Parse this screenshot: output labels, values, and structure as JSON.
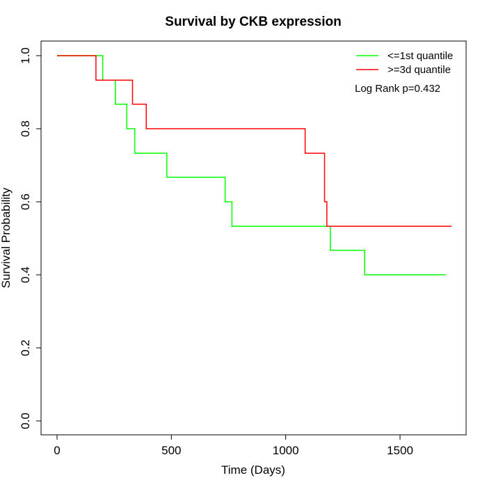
{
  "chart_data": {
    "type": "line",
    "subtype": "kaplan-meier step curve",
    "title": "Survival by CKB expression",
    "xlabel": "Time (Days)",
    "ylabel": "Survival Probability",
    "xlim": [
      0,
      1750
    ],
    "ylim": [
      0,
      1.0
    ],
    "x_ticks": [
      0,
      500,
      1000,
      1500
    ],
    "y_ticks": [
      "0.0",
      "0.2",
      "0.4",
      "0.6",
      "0.8",
      "1.0"
    ],
    "grid": false,
    "legend_position": "top-right",
    "annotation": "Log Rank p=0.432",
    "series": [
      {
        "name": "<=1st quantile",
        "color": "#00ff00",
        "points": [
          [
            0,
            1.0
          ],
          [
            200,
            1.0
          ],
          [
            200,
            0.933
          ],
          [
            255,
            0.933
          ],
          [
            255,
            0.867
          ],
          [
            305,
            0.867
          ],
          [
            305,
            0.8
          ],
          [
            340,
            0.8
          ],
          [
            340,
            0.733
          ],
          [
            480,
            0.733
          ],
          [
            480,
            0.667
          ],
          [
            735,
            0.667
          ],
          [
            735,
            0.6
          ],
          [
            765,
            0.6
          ],
          [
            765,
            0.533
          ],
          [
            1195,
            0.533
          ],
          [
            1195,
            0.467
          ],
          [
            1345,
            0.467
          ],
          [
            1345,
            0.4
          ],
          [
            1700,
            0.4
          ]
        ]
      },
      {
        "name": ">=3d quantile",
        "color": "#ff0000",
        "points": [
          [
            0,
            1.0
          ],
          [
            170,
            1.0
          ],
          [
            170,
            0.933
          ],
          [
            330,
            0.933
          ],
          [
            330,
            0.867
          ],
          [
            390,
            0.867
          ],
          [
            390,
            0.8
          ],
          [
            1085,
            0.8
          ],
          [
            1085,
            0.733
          ],
          [
            1170,
            0.733
          ],
          [
            1170,
            0.6
          ],
          [
            1180,
            0.6
          ],
          [
            1180,
            0.533
          ],
          [
            1725,
            0.533
          ]
        ]
      }
    ]
  }
}
